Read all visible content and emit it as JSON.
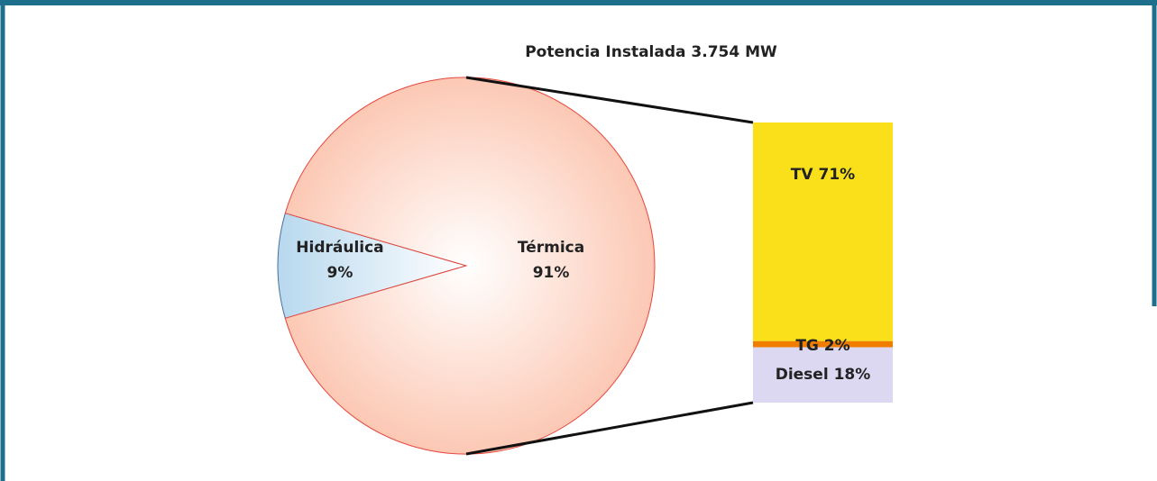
{
  "chart_data": {
    "type": "pie-of-bar",
    "title": "Potencia Instalada 3.754 MW",
    "categories": [
      "Hidráulica",
      "Térmica"
    ],
    "values": [
      9,
      91
    ],
    "value_labels": [
      "9%",
      "91%"
    ],
    "colors": [
      "#b8d8ee",
      "#fcc8b4"
    ],
    "bar": {
      "categories": [
        "TV",
        "TG",
        "Diesel"
      ],
      "values": [
        71,
        2,
        18
      ],
      "value_labels": [
        "71%",
        "2%",
        "18%"
      ],
      "colors": [
        "#f9e01b",
        "#f07d00",
        "#dcd8f2"
      ]
    }
  }
}
